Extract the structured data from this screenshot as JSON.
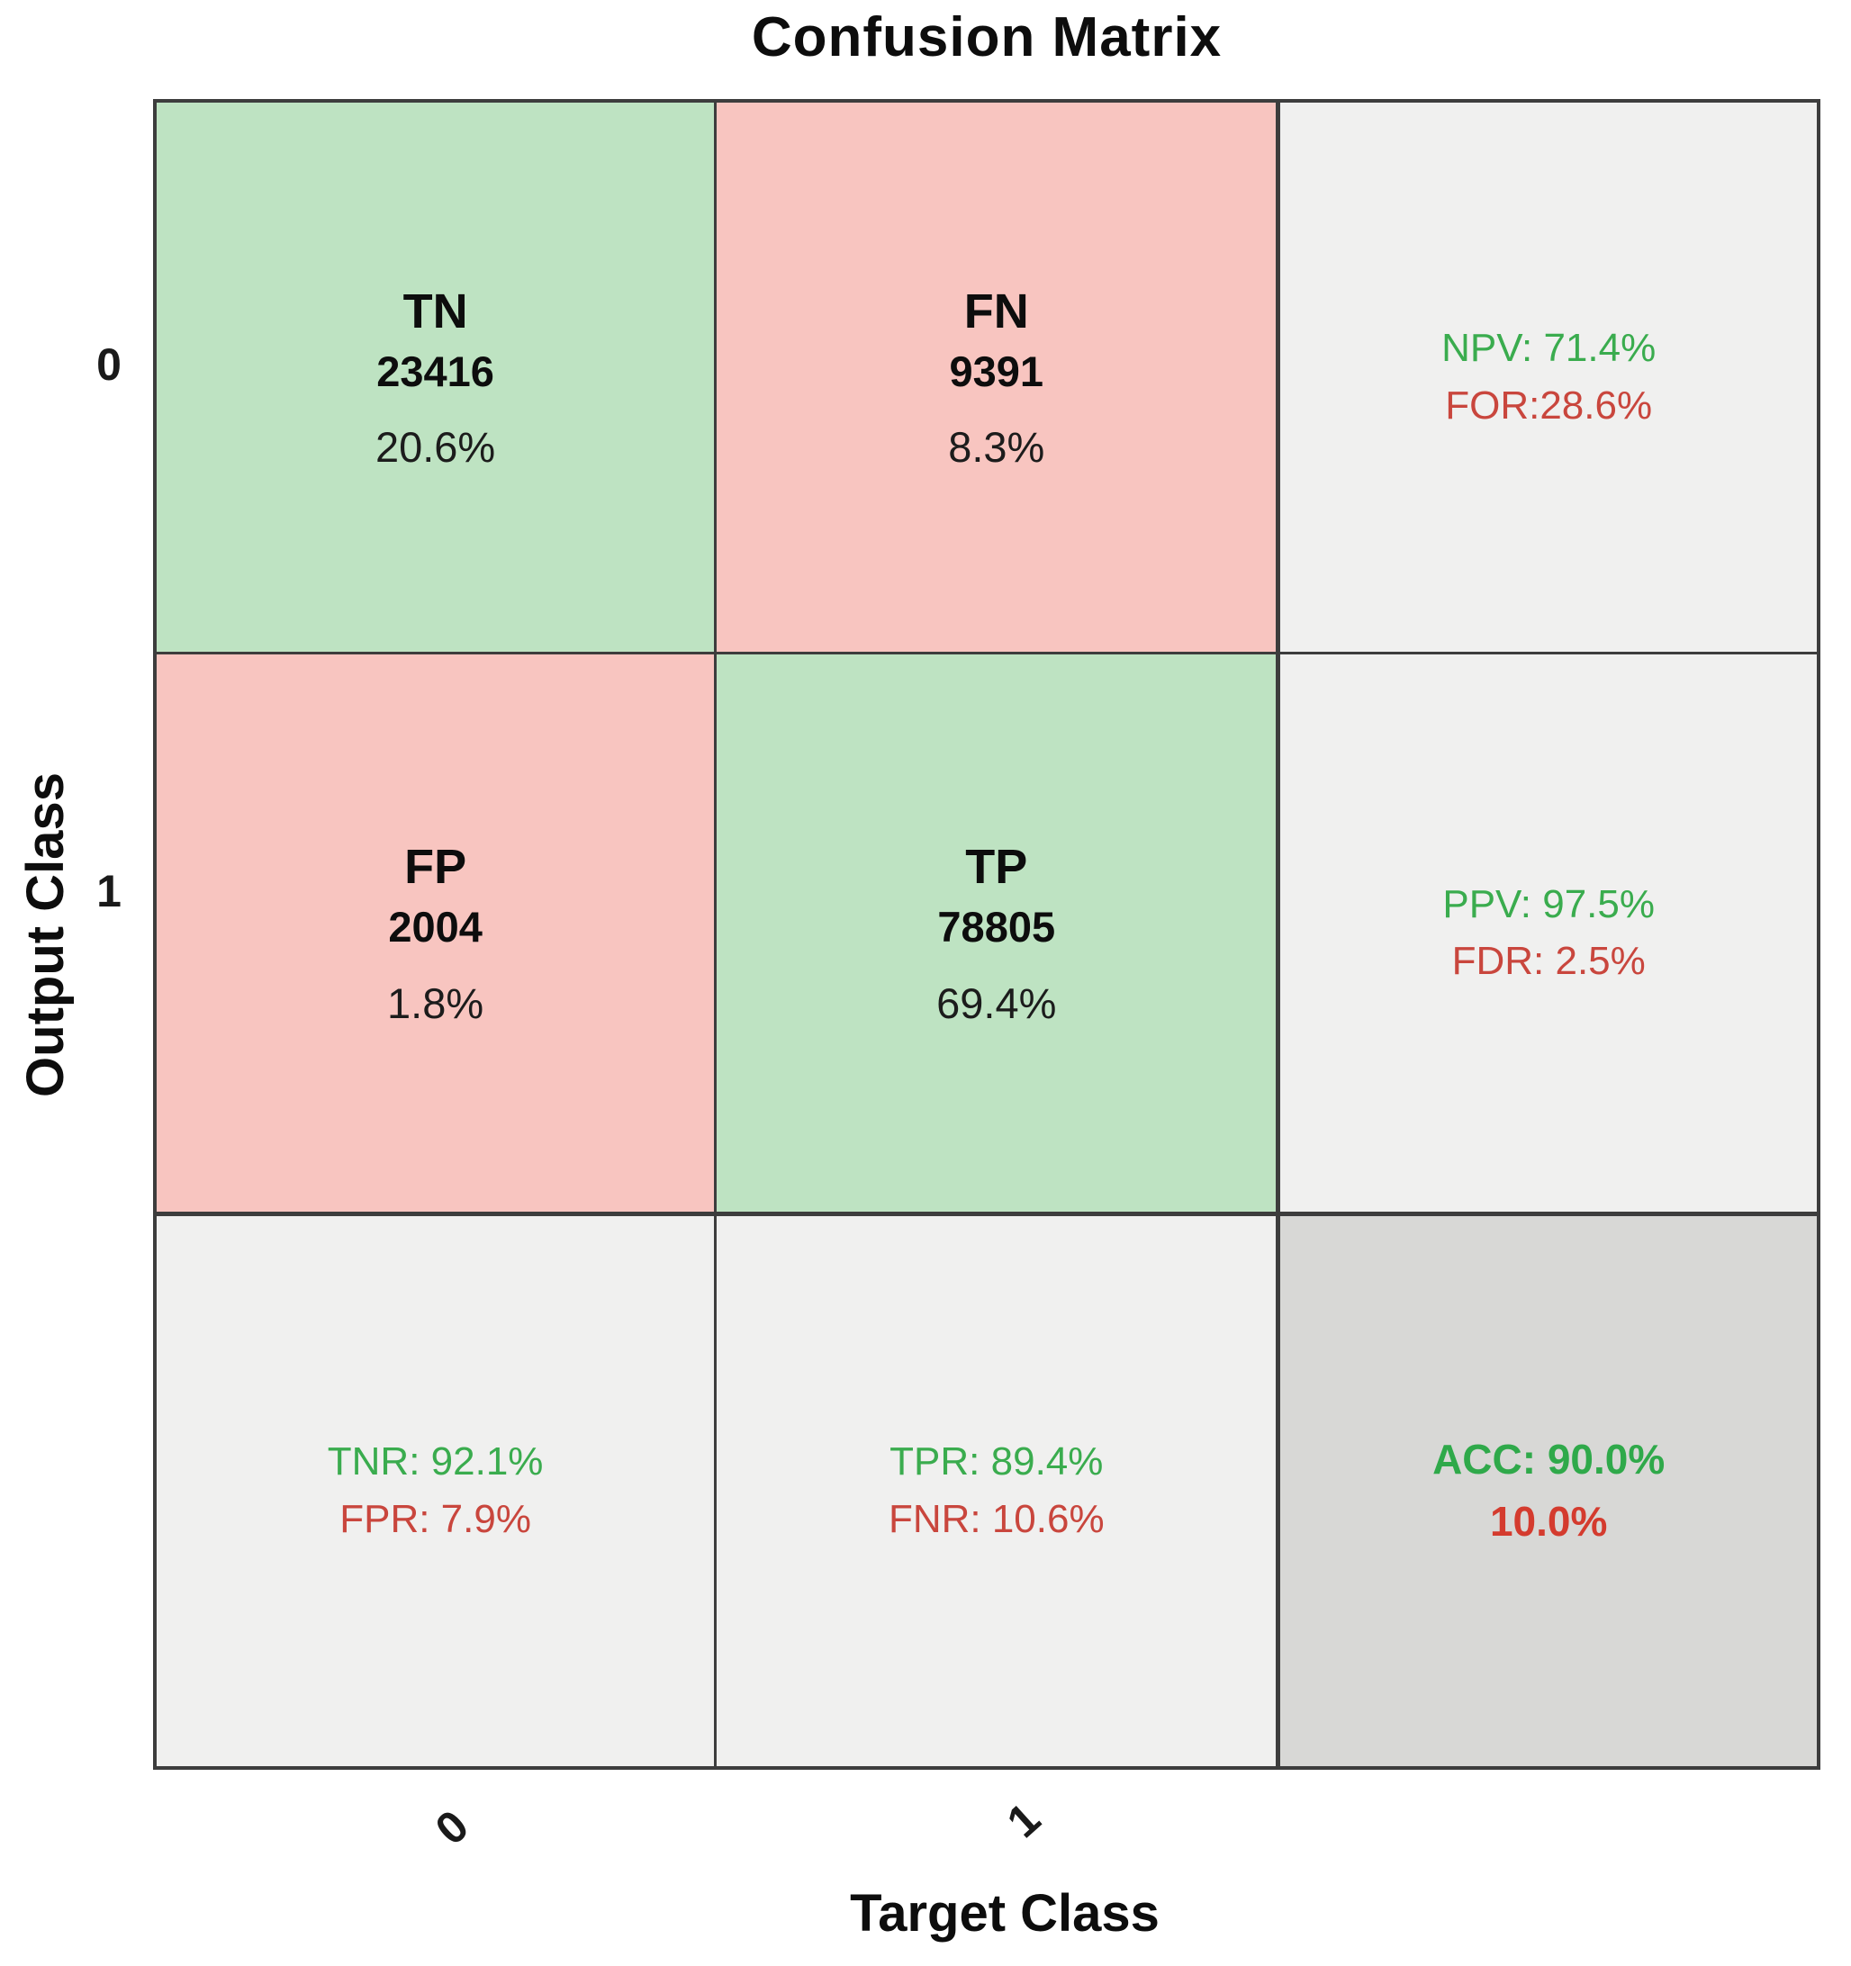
{
  "title": "Confusion Matrix",
  "axes": {
    "x_label": "Target Class",
    "y_label": "Output Class",
    "x_ticks": {
      "t0": "0",
      "t1": "1"
    },
    "y_ticks": {
      "t0": "0",
      "t1": "1"
    }
  },
  "cells": {
    "tn": {
      "label": "TN",
      "count": "23416",
      "percent": "20.6%"
    },
    "fn": {
      "label": "FN",
      "count": "9391",
      "percent": "8.3%"
    },
    "row0_summary": {
      "line1": "NPV: 71.4%",
      "line2": "FOR:28.6%"
    },
    "fp": {
      "label": "FP",
      "count": "2004",
      "percent": "1.8%"
    },
    "tp": {
      "label": "TP",
      "count": "78805",
      "percent": "69.4%"
    },
    "row1_summary": {
      "line1": "PPV: 97.5%",
      "line2": "FDR: 2.5%"
    },
    "col0_summary": {
      "line1": "TNR: 92.1%",
      "line2": "FPR: 7.9%"
    },
    "col1_summary": {
      "line1": "TPR: 89.4%",
      "line2": "FNR: 10.6%"
    },
    "overall": {
      "line1": "ACC: 90.0%",
      "line2": "10.0%"
    }
  },
  "colors": {
    "correct_cell": "#bee3c2",
    "incorrect_cell": "#f8c5c0",
    "summary_cell": "#f0f0ef",
    "overall_cell": "#d8d8d6",
    "positive_text": "#3aac4e",
    "negative_text": "#c9463d",
    "grid_line": "#3d3d3d"
  },
  "chart_data": {
    "type": "heatmap",
    "title": "Confusion Matrix",
    "xlabel": "Target Class",
    "ylabel": "Output Class",
    "classes": [
      "0",
      "1"
    ],
    "cell_labels": [
      [
        "TN",
        "FN"
      ],
      [
        "FP",
        "TP"
      ]
    ],
    "matrix_counts": [
      [
        23416,
        9391
      ],
      [
        2004,
        78805
      ]
    ],
    "matrix_percent": [
      [
        20.6,
        8.3
      ],
      [
        1.8,
        69.4
      ]
    ],
    "row_summaries": [
      {
        "name": "NPV",
        "value": 71.4,
        "complement_name": "FOR",
        "complement_value": 28.6
      },
      {
        "name": "PPV",
        "value": 97.5,
        "complement_name": "FDR",
        "complement_value": 2.5
      }
    ],
    "column_summaries": [
      {
        "name": "TNR",
        "value": 92.1,
        "complement_name": "FPR",
        "complement_value": 7.9
      },
      {
        "name": "TPR",
        "value": 89.4,
        "complement_name": "FNR",
        "complement_value": 10.6
      }
    ],
    "overall": {
      "name": "ACC",
      "value": 90.0,
      "error_value": 10.0
    },
    "legend_position": "none",
    "grid": true
  }
}
